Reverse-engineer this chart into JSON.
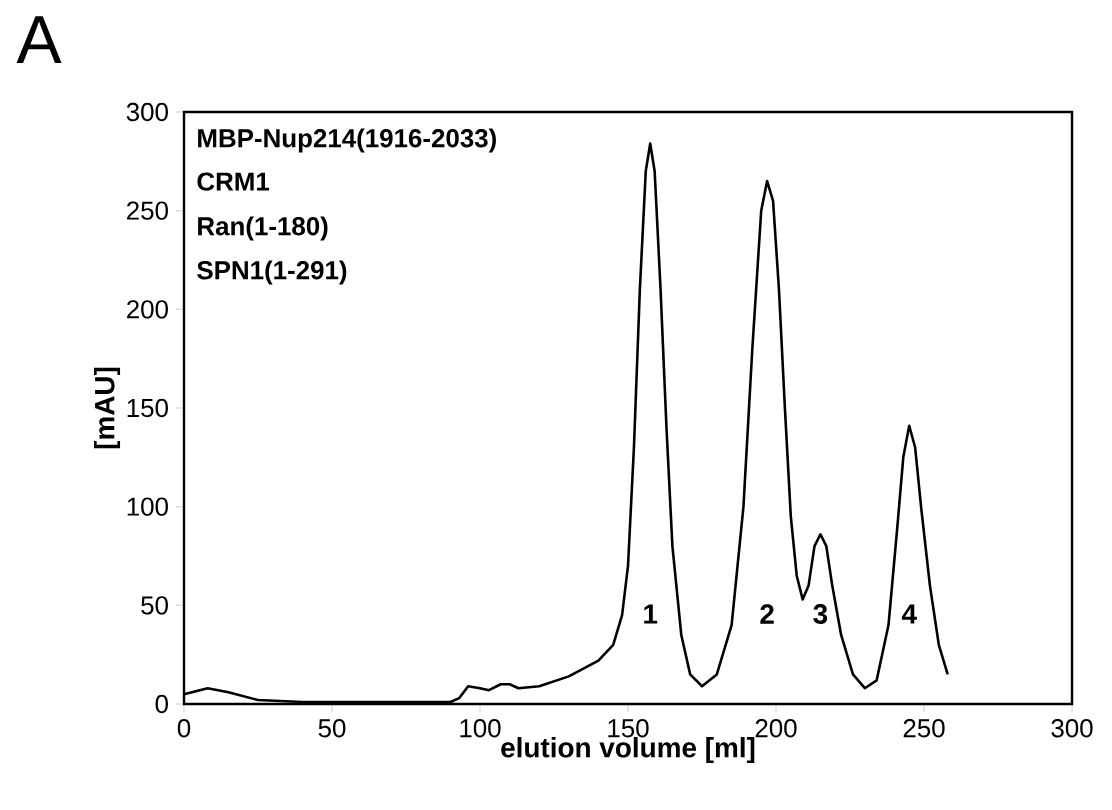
{
  "chart_data": {
    "type": "line",
    "title": "A",
    "xlabel": "elution volume [ml]",
    "ylabel": "[mAU]",
    "xlim": [
      0,
      300
    ],
    "ylim": [
      0,
      300
    ],
    "xticks": [
      0,
      50,
      100,
      150,
      200,
      250,
      300
    ],
    "yticks": [
      0,
      50,
      100,
      150,
      200,
      250,
      300
    ],
    "grid": false,
    "marker": "none",
    "line_style": "solid",
    "series": [
      {
        "color": "#000000",
        "x": [
          0,
          8,
          15,
          25,
          40,
          60,
          90,
          93,
          96,
          100,
          103,
          107,
          110,
          113,
          120,
          130,
          140,
          145,
          148,
          150,
          152,
          154,
          156,
          157.5,
          159,
          161,
          163,
          165,
          168,
          171,
          175,
          180,
          185,
          189,
          192,
          195,
          197,
          199,
          201,
          203,
          205,
          207,
          209,
          211,
          213,
          215,
          217,
          219,
          222,
          226,
          230,
          234,
          238,
          241,
          243,
          245,
          247,
          249,
          252,
          255,
          258
        ],
        "values": [
          5,
          8,
          6,
          2,
          1,
          1,
          1,
          3,
          9,
          8,
          7,
          10,
          10,
          8,
          9,
          14,
          22,
          30,
          45,
          70,
          130,
          210,
          270,
          284,
          270,
          210,
          140,
          80,
          35,
          15,
          9,
          15,
          40,
          100,
          180,
          250,
          265,
          255,
          210,
          150,
          95,
          65,
          53,
          60,
          80,
          86,
          80,
          60,
          35,
          15,
          8,
          12,
          40,
          90,
          125,
          141,
          130,
          100,
          60,
          30,
          15
        ]
      }
    ],
    "annotations": [
      "MBP-Nup214(1916-2033)",
      "CRM1",
      "Ran(1-180)",
      "SPN1(1-291)",
      "1",
      "2",
      "3",
      "4"
    ]
  }
}
